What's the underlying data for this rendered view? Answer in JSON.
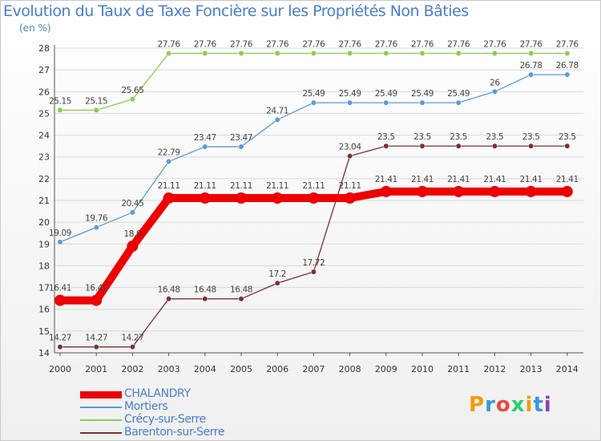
{
  "chart_data": {
    "type": "line",
    "title": "Evolution du Taux de Taxe Foncière sur les Propriétés Non Bâties",
    "unit_label": "(en %)",
    "x": [
      "2000",
      "2001",
      "2002",
      "2003",
      "2004",
      "2005",
      "2006",
      "2007",
      "2008",
      "2009",
      "2010",
      "2011",
      "2012",
      "2013",
      "2014"
    ],
    "ylim": [
      14,
      28
    ],
    "y_ticks": [
      14,
      15,
      16,
      17,
      18,
      19,
      20,
      21,
      22,
      23,
      24,
      25,
      26,
      27,
      28
    ],
    "grid": true,
    "legend_position": "bottom-left",
    "series": [
      {
        "name": "CHALANDRY",
        "color": "#ee0000",
        "values": [
          16.41,
          16.41,
          18.9,
          21.11,
          21.11,
          21.11,
          21.11,
          21.11,
          21.11,
          21.41,
          21.41,
          21.41,
          21.41,
          21.41,
          21.41
        ],
        "labels": [
          "16.41",
          "16.41",
          "18.9",
          "21.11",
          "21.11",
          "21.11",
          "21.11",
          "21.11",
          "21.11",
          "21.41",
          "21.41",
          "21.41",
          "21.41",
          "21.41",
          "21.41"
        ]
      },
      {
        "name": "Mortiers",
        "color": "#5b9bd5",
        "values": [
          19.09,
          19.76,
          20.45,
          22.79,
          23.47,
          23.47,
          24.71,
          25.49,
          25.49,
          25.49,
          25.49,
          25.49,
          26,
          26.78,
          26.78
        ],
        "labels": [
          "19.09",
          "19.76",
          "20.45",
          "22.79",
          "23.47",
          "23.47",
          "24.71",
          "25.49",
          "25.49",
          "25.49",
          "25.49",
          "25.49",
          "26",
          "26.78",
          "26.78"
        ]
      },
      {
        "name": "Crécy-sur-Serre",
        "color": "#8dcc4e",
        "values": [
          25.15,
          25.15,
          25.65,
          27.76,
          27.76,
          27.76,
          27.76,
          27.76,
          27.76,
          27.76,
          27.76,
          27.76,
          27.76,
          27.76,
          27.76
        ],
        "labels": [
          "25.15",
          "25.15",
          "25.65",
          "27.76",
          "27.76",
          "27.76",
          "27.76",
          "27.76",
          "27.76",
          "27.76",
          "27.76",
          "27.76",
          "27.76",
          "27.76",
          "27.76"
        ]
      },
      {
        "name": "Barenton-sur-Serre",
        "color": "#7b3030",
        "values": [
          14.27,
          14.27,
          14.27,
          16.48,
          16.48,
          16.48,
          17.2,
          17.72,
          23.04,
          23.5,
          23.5,
          23.5,
          23.5,
          23.5,
          23.5
        ],
        "labels": [
          "14.27",
          "14.27",
          "14.27",
          "16.48",
          "16.48",
          "16.48",
          "17.2",
          "17.72",
          "23.04",
          "23.5",
          "23.5",
          "23.5",
          "23.5",
          "23.5",
          "23.5"
        ]
      }
    ]
  },
  "logo": {
    "text": "Proxiti",
    "colors": [
      "#f39c12",
      "#3498db",
      "#e74c3c",
      "#2ecc71",
      "#f39c12",
      "#3498db",
      "#8e44ad"
    ]
  }
}
